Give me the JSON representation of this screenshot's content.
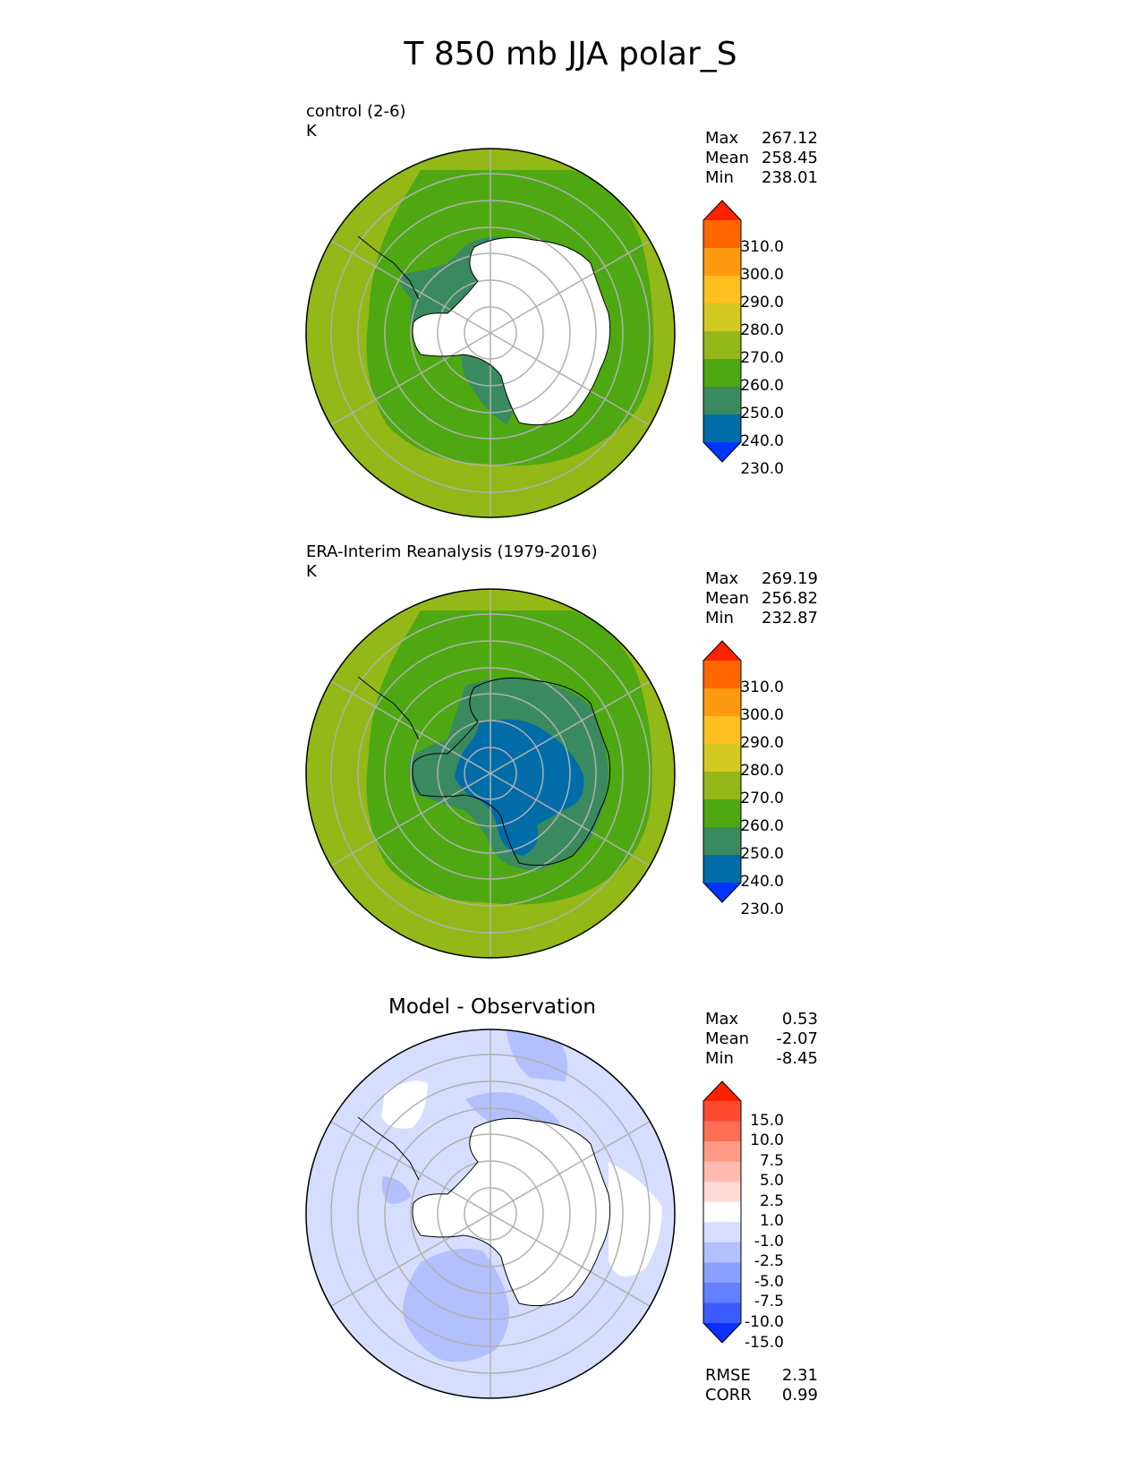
{
  "figure_title": "T 850 mb JJA polar_S",
  "panels": [
    {
      "name": "control",
      "title": "control (2-6)",
      "units": "K",
      "stats": [
        [
          "Max",
          "267.12"
        ],
        [
          "Mean",
          "258.45"
        ],
        [
          "Min",
          "238.01"
        ]
      ],
      "colorbar": {
        "ticks": [
          "310.0",
          "300.0",
          "290.0",
          "280.0",
          "270.0",
          "260.0",
          "250.0",
          "240.0",
          "230.0"
        ],
        "colors": [
          "#ff2200",
          "#ff6600",
          "#ff9910",
          "#ffc020",
          "#d4c822",
          "#94b818",
          "#4ea812",
          "#3a8a60",
          "#006ca8",
          "#0035ff"
        ]
      }
    },
    {
      "name": "observation",
      "title": "ERA-Interim Reanalysis (1979-2016)",
      "units": "K",
      "stats": [
        [
          "Max",
          "269.19"
        ],
        [
          "Mean",
          "256.82"
        ],
        [
          "Min",
          "232.87"
        ]
      ],
      "colorbar": {
        "ticks": [
          "310.0",
          "300.0",
          "290.0",
          "280.0",
          "270.0",
          "260.0",
          "250.0",
          "240.0",
          "230.0"
        ],
        "colors": [
          "#ff2200",
          "#ff6600",
          "#ff9910",
          "#ffc020",
          "#d4c822",
          "#94b818",
          "#4ea812",
          "#3a8a60",
          "#006ca8",
          "#0035ff"
        ]
      }
    },
    {
      "name": "difference",
      "title": "Model - Observation",
      "stats": [
        [
          "Max",
          "0.53"
        ],
        [
          "Mean",
          "-2.07"
        ],
        [
          "Min",
          "-8.45"
        ]
      ],
      "metrics": [
        [
          "RMSE",
          "2.31"
        ],
        [
          "CORR",
          "0.99"
        ]
      ],
      "colorbar": {
        "ticks": [
          "15.0",
          "10.0",
          "7.5",
          "5.0",
          "2.5",
          "1.0",
          "-1.0",
          "-2.5",
          "-5.0",
          "-7.5",
          "-10.0",
          "-15.0"
        ],
        "colors": [
          "#ff2200",
          "#ff4a32",
          "#ff6e55",
          "#ff9a86",
          "#ffbab0",
          "#ffdcd6",
          "#ffffff",
          "#d6deff",
          "#b2c0ff",
          "#8aa0ff",
          "#6280ff",
          "#3a5cff",
          "#0a30ff"
        ]
      }
    }
  ],
  "chart_data": [
    {
      "type": "heatmap",
      "projection": "south polar stereographic",
      "title": "control (2-6)",
      "units": "K",
      "levels": [
        230,
        240,
        250,
        260,
        270,
        280,
        290,
        300,
        310
      ],
      "max": 267.12,
      "mean": 258.45,
      "min": 238.01
    },
    {
      "type": "heatmap",
      "projection": "south polar stereographic",
      "title": "ERA-Interim Reanalysis (1979-2016)",
      "units": "K",
      "levels": [
        230,
        240,
        250,
        260,
        270,
        280,
        290,
        300,
        310
      ],
      "max": 269.19,
      "mean": 256.82,
      "min": 232.87
    },
    {
      "type": "heatmap",
      "projection": "south polar stereographic",
      "title": "Model - Observation",
      "levels": [
        -15,
        -10,
        -7.5,
        -5,
        -2.5,
        -1,
        1,
        2.5,
        5,
        7.5,
        10,
        15
      ],
      "max": 0.53,
      "mean": -2.07,
      "min": -8.45,
      "rmse": 2.31,
      "corr": 0.99
    }
  ]
}
